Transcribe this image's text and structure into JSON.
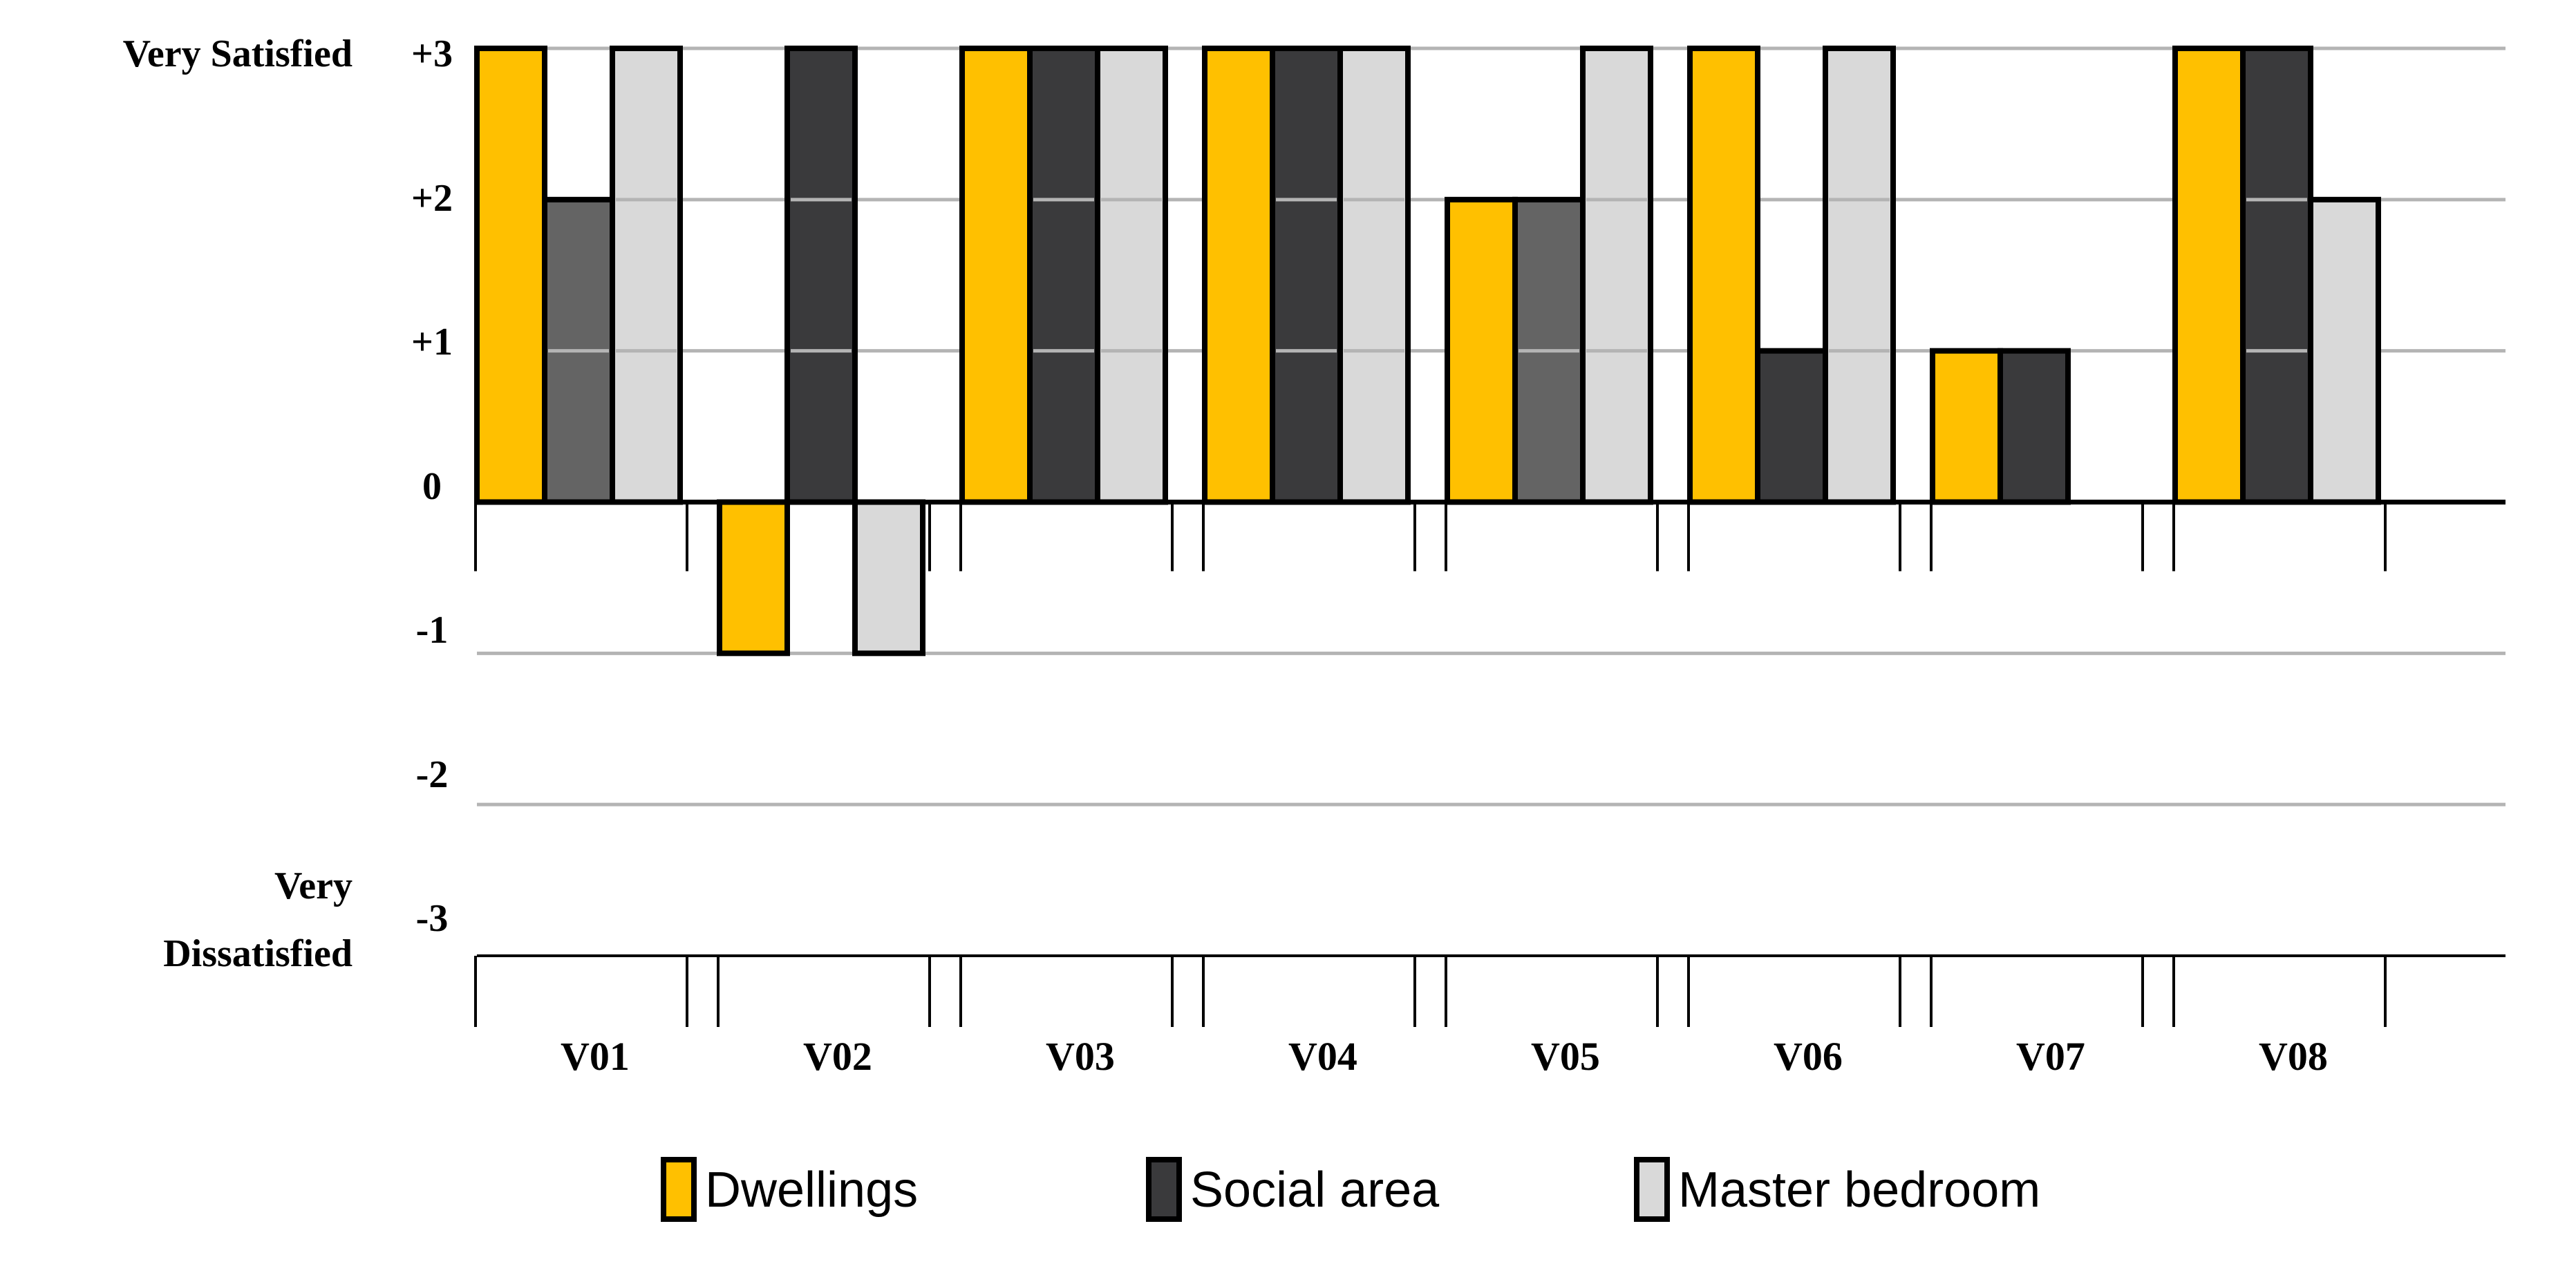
{
  "chart_data": {
    "type": "bar",
    "categories": [
      "V01",
      "V02",
      "V03",
      "V04",
      "V05",
      "V06",
      "V07",
      "V08"
    ],
    "series": [
      {
        "name": "Dwellings",
        "color": "#FFC000",
        "values": [
          3,
          -1,
          3,
          3,
          2,
          3,
          1,
          3
        ]
      },
      {
        "name": "Social area",
        "color": "#3A3A3C",
        "values": [
          2,
          3,
          3,
          3,
          2,
          1,
          1,
          3
        ]
      },
      {
        "name": "Master bedroom",
        "color": "#D9D9D9",
        "values": [
          3,
          -1,
          3,
          3,
          3,
          3,
          0,
          2
        ]
      }
    ],
    "y_ticks": [
      "+3",
      "+2",
      "+1",
      "0",
      "-1",
      "-2",
      "-3"
    ],
    "ylim": [
      -3,
      3
    ],
    "y_top_label": "Very Satisfied",
    "y_bottom_label_lines": [
      "Very",
      "Dissatisfied"
    ],
    "grid": true,
    "legend_position": "bottom-center",
    "colors": {
      "two_value_bar": "#646464",
      "gridline": "#B4B4B4",
      "axis": "#000000"
    }
  }
}
